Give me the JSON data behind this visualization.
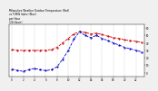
{
  "hours": [
    0,
    1,
    2,
    3,
    4,
    5,
    6,
    7,
    8,
    9,
    10,
    11,
    12,
    13,
    14,
    15,
    16,
    17,
    18,
    19,
    20,
    21,
    22,
    23
  ],
  "temp_red": [
    31,
    30,
    30,
    30,
    30,
    30,
    30,
    31,
    34,
    40,
    46,
    52,
    55,
    54,
    52,
    53,
    51,
    49,
    47,
    46,
    44,
    43,
    42,
    41
  ],
  "thsw_blue": [
    5,
    3,
    2,
    4,
    6,
    4,
    3,
    4,
    8,
    18,
    30,
    45,
    55,
    50,
    47,
    50,
    46,
    43,
    40,
    37,
    34,
    32,
    30,
    28
  ],
  "background": "#f0f0f0",
  "plot_bg": "#ffffff",
  "red_color": "#cc0000",
  "blue_color": "#0000cc",
  "grid_color": "#aaaaaa",
  "ylim": [
    -5,
    65
  ],
  "yticks": [
    0,
    10,
    20,
    30,
    40,
    50,
    60
  ],
  "title": "Milwaukee Weather Outdoor Temperature (Red)\nvs THSW Index (Blue)\nper Hour\n(24 Hours)"
}
